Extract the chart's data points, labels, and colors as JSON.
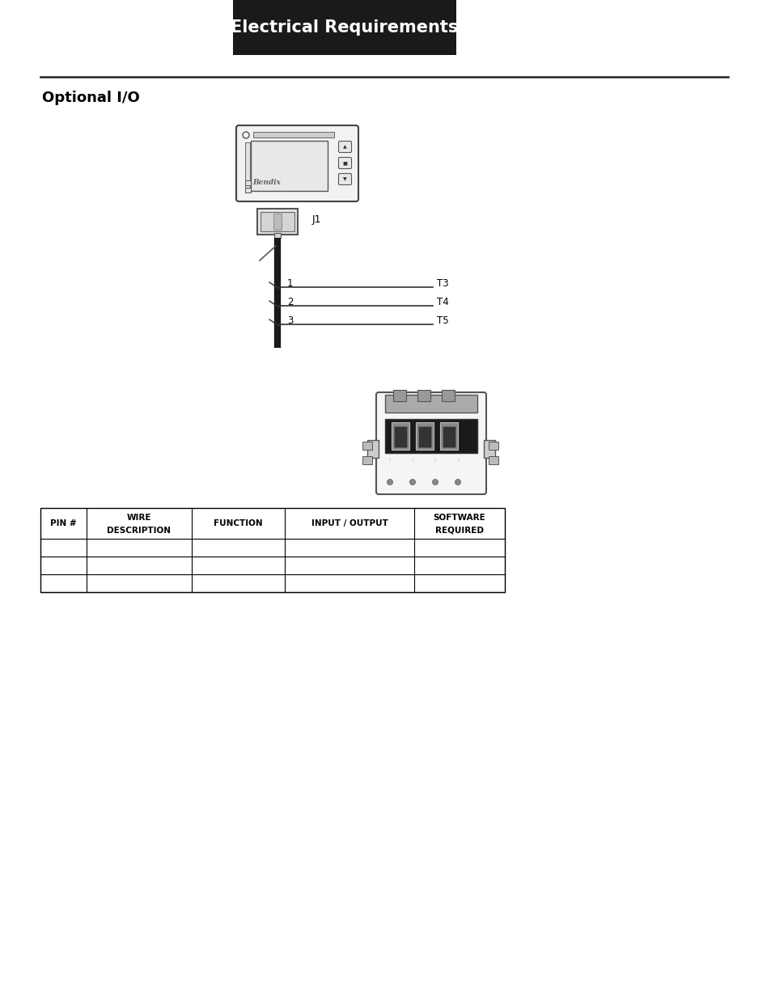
{
  "title_text": "Electrical Requirements",
  "title_bg": "#1a1a1a",
  "title_color": "#ffffff",
  "title_fontsize": 15,
  "section_label": "Optional I/O",
  "section_fontsize": 13,
  "table_headers_line1": [
    "PIN #",
    "WIRE",
    "FUNCTION",
    "INPUT / OUTPUT",
    "SOFTWARE"
  ],
  "table_headers_line2": [
    "",
    "DESCRIPTION",
    "",
    "",
    "REQUIRED"
  ],
  "bg_color": "#ffffff",
  "line_color": "#000000",
  "table_border_color": "#000000",
  "j1_label": "J1"
}
